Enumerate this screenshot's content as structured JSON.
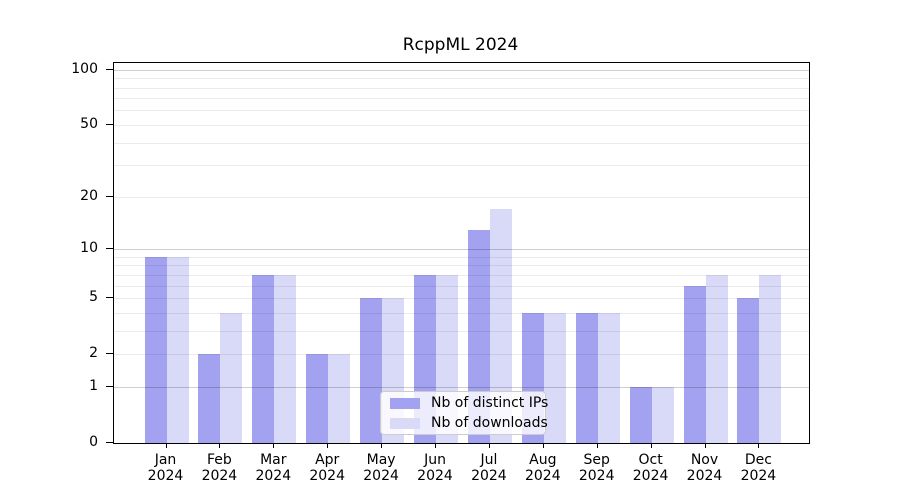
{
  "chart_data": {
    "type": "bar",
    "title": "RcppML 2024",
    "y_scale": "log1p",
    "grid": "on",
    "legend_position": "inside-bottom-center",
    "categories": [
      "Jan",
      "Feb",
      "Mar",
      "Apr",
      "May",
      "Jun",
      "Jul",
      "Aug",
      "Sep",
      "Oct",
      "Nov",
      "Dec"
    ],
    "category_year": "2024",
    "series": [
      {
        "name": "Nb of distinct IPs",
        "color": "#a2a2f0",
        "values": [
          9,
          2,
          7,
          2,
          5,
          7,
          13,
          4,
          4,
          1,
          6,
          5
        ]
      },
      {
        "name": "Nb of downloads",
        "color": "#d9d9f8",
        "values": [
          9,
          4,
          7,
          2,
          5,
          7,
          17,
          4,
          4,
          1,
          7,
          7
        ]
      }
    ],
    "ylim": [
      0,
      100
    ],
    "yticks": [
      100,
      50,
      20,
      10,
      5,
      2,
      1,
      0
    ],
    "grid_minor": [
      2,
      3,
      4,
      5,
      6,
      7,
      8,
      9,
      20,
      30,
      40,
      50,
      60,
      70,
      80,
      90
    ],
    "grid_major": [
      1,
      10,
      100
    ]
  }
}
